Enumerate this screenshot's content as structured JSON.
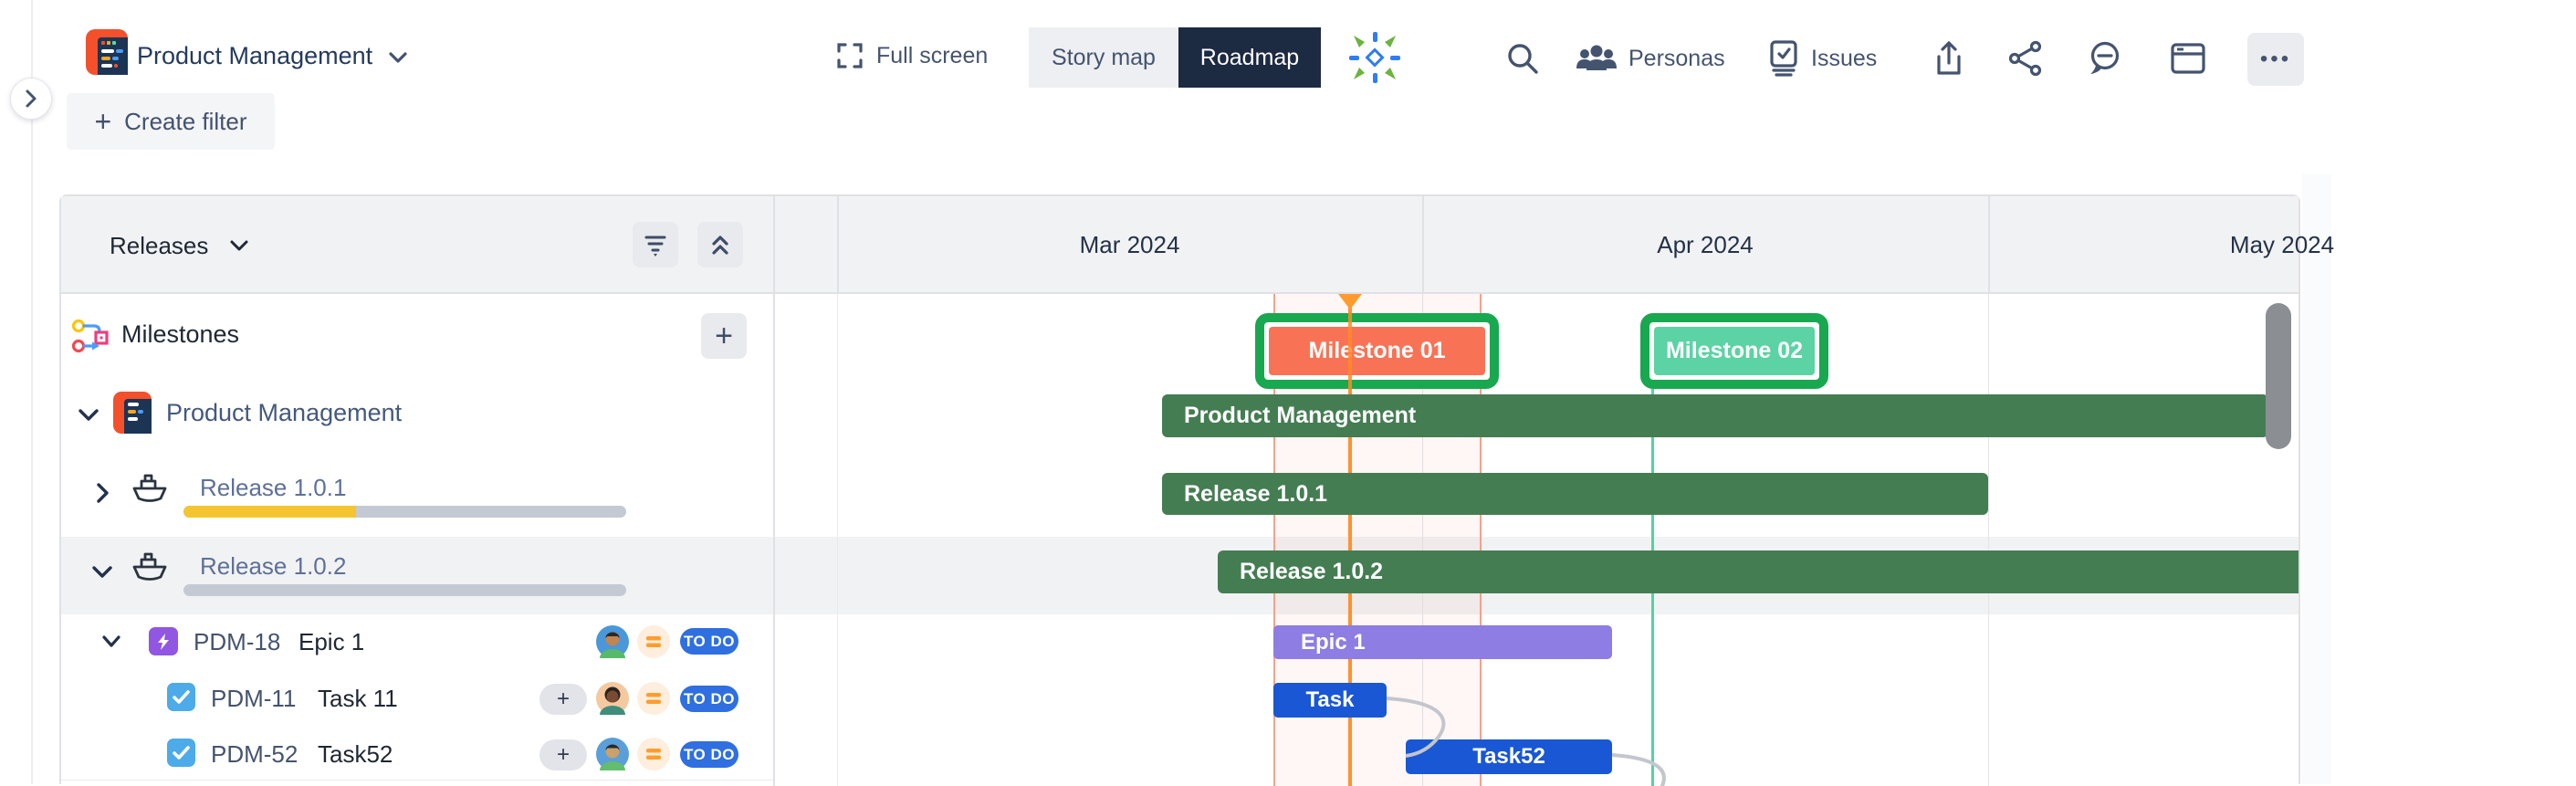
{
  "header": {
    "app_title": "Product Management",
    "fullscreen": "Full screen",
    "view_toggle": {
      "story_map": "Story map",
      "roadmap": "Roadmap"
    },
    "personas": "Personas",
    "issues": "Issues",
    "more": "•••"
  },
  "toolbar": {
    "plus": "+",
    "create_filter": "Create filter"
  },
  "left_panel": {
    "group_selector": "Releases",
    "milestones_label": "Milestones",
    "add": "+",
    "project": "Product Management",
    "releases": [
      {
        "name": "Release 1.0.1",
        "progress_percent": 39
      },
      {
        "name": "Release 1.0.2",
        "progress_percent": 0
      }
    ],
    "issues": [
      {
        "key": "PDM-18",
        "summary": "Epic 1",
        "type": "epic",
        "status": "TO DO"
      },
      {
        "key": "PDM-11",
        "summary": "Task 11",
        "type": "task",
        "status": "TO DO",
        "add": "+"
      },
      {
        "key": "PDM-52",
        "summary": "Task52",
        "type": "task",
        "status": "TO DO",
        "add": "+"
      }
    ]
  },
  "timeline": {
    "months": [
      "Mar 2024",
      "Apr 2024",
      "May 2024"
    ],
    "milestones": [
      {
        "label": "Milestone 01",
        "color": "#f87356",
        "selected": true
      },
      {
        "label": "Milestone 02",
        "color": "#5bd3a4",
        "selected": true
      }
    ],
    "bars": {
      "project": "Product Management",
      "release1": "Release 1.0.1",
      "release2": "Release 1.0.2",
      "epic": "Epic 1",
      "task": "Task",
      "task52": "Task52"
    }
  },
  "colors": {
    "bar_green": "#457d53",
    "epic_purple": "#8e7de2",
    "task_blue": "#1957d4",
    "milestone1_fill": "#f87356",
    "milestone2_fill": "#5bd3a4",
    "selection_green": "#18a850",
    "status_badge_blue": "#2f6fe0",
    "progress_yellow": "#f5c531",
    "today_orange": "#ff9130",
    "header_bg": "#f1f2f4"
  }
}
